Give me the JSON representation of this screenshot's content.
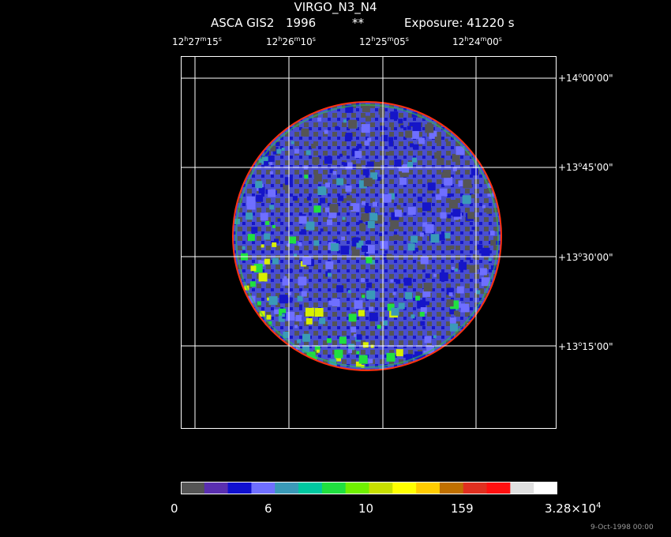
{
  "header": {
    "title": "VIRGO_N3_N4",
    "instrument": "ASCA GIS2",
    "year": "1996",
    "stars": "**",
    "exposure": "Exposure: 41220 s"
  },
  "ra_labels": [
    {
      "h": "12",
      "m": "27",
      "s": "15"
    },
    {
      "h": "12",
      "m": "26",
      "s": "10"
    },
    {
      "h": "12",
      "m": "25",
      "s": "05"
    },
    {
      "h": "12",
      "m": "24",
      "s": "00"
    }
  ],
  "dec_labels": [
    {
      "d": "+14",
      "m": "00",
      "s": "00"
    },
    {
      "d": "+13",
      "m": "45",
      "s": "00"
    },
    {
      "d": "+13",
      "m": "30",
      "s": "00"
    },
    {
      "d": "+13",
      "m": "15",
      "s": "00"
    }
  ],
  "colorbar": {
    "colors": [
      "#555555",
      "#5a2fb0",
      "#1010d0",
      "#6f6fff",
      "#3a9ab8",
      "#00c8a0",
      "#20e040",
      "#70f000",
      "#c8e000",
      "#ffff00",
      "#ffcc00",
      "#c07000",
      "#e03020",
      "#ff1010",
      "#e0e0e0",
      "#ffffff"
    ],
    "tick_labels": [
      "0",
      "6",
      "10",
      "159",
      "3.28×10"
    ],
    "tick_exponent": "4"
  },
  "footer": "9-Oct-1998 00:00"
}
